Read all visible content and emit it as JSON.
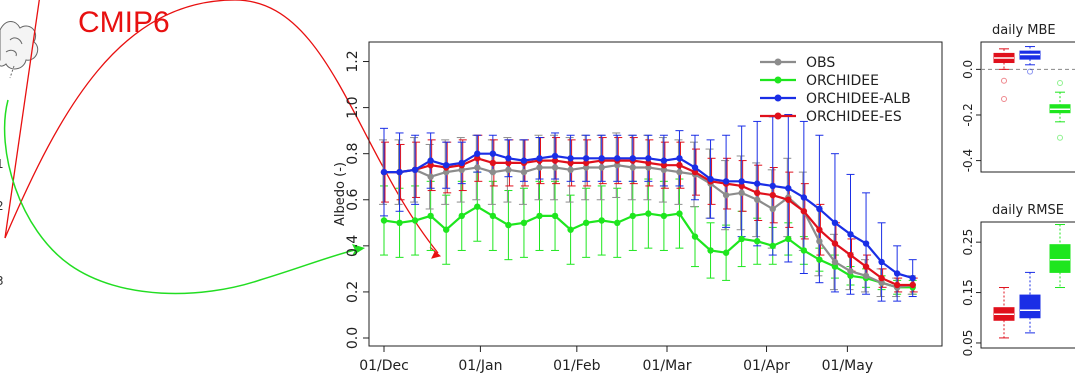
{
  "annotation": {
    "label": "CMIP6",
    "color": "#e81010"
  },
  "left_fragments": [
    "1",
    "2",
    "3"
  ],
  "colors": {
    "OBS": "#8c8c8c",
    "ORCHIDEE": "#1ee61e",
    "ORCHIDEE-ALB": "#1a2ee6",
    "ORCHIDEE-ES": "#e0101c",
    "arrow_red": "#e81010",
    "arrow_green": "#22dd22"
  },
  "chart_data": [
    {
      "type": "line",
      "ylabel": "Albedo (-)",
      "ylim": [
        0,
        1.25
      ],
      "yticks": [
        "0.0",
        "0.2",
        "0.4",
        "0.6",
        "0.8",
        "1.0",
        "1.2"
      ],
      "ytick_values": [
        0,
        0.2,
        0.4,
        0.6,
        0.8,
        1.0,
        1.2
      ],
      "xlim": [
        0,
        34
      ],
      "xticks": [
        "01/Dec",
        "01/Jan",
        "01/Feb",
        "01/Mar",
        "01/Apr",
        "01/May"
      ],
      "xtick_positions": [
        0,
        6.2,
        12.4,
        18.2,
        24.6,
        29.8
      ],
      "legend_position": "top-right",
      "series": [
        {
          "name": "OBS",
          "values": [
            0.72,
            0.72,
            0.73,
            0.7,
            0.72,
            0.73,
            0.74,
            0.72,
            0.73,
            0.72,
            0.74,
            0.74,
            0.73,
            0.74,
            0.74,
            0.75,
            0.74,
            0.74,
            0.73,
            0.72,
            0.71,
            0.67,
            0.62,
            0.63,
            0.6,
            0.56,
            0.61,
            0.55,
            0.42,
            0.33,
            0.29,
            0.27,
            0.24,
            0.22,
            0.23
          ],
          "err": [
            0.14,
            0.14,
            0.14,
            0.14,
            0.14,
            0.14,
            0.14,
            0.14,
            0.14,
            0.14,
            0.14,
            0.14,
            0.14,
            0.14,
            0.14,
            0.14,
            0.14,
            0.14,
            0.14,
            0.14,
            0.14,
            0.15,
            0.15,
            0.16,
            0.16,
            0.17,
            0.17,
            0.17,
            0.15,
            0.12,
            0.08,
            0.07,
            0.06,
            0.04,
            0.04
          ]
        },
        {
          "name": "ORCHIDEE",
          "values": [
            0.51,
            0.5,
            0.51,
            0.53,
            0.47,
            0.53,
            0.57,
            0.53,
            0.49,
            0.5,
            0.53,
            0.53,
            0.47,
            0.5,
            0.51,
            0.5,
            0.53,
            0.54,
            0.53,
            0.54,
            0.44,
            0.38,
            0.37,
            0.43,
            0.42,
            0.4,
            0.43,
            0.38,
            0.34,
            0.31,
            0.27,
            0.26,
            0.24,
            0.22,
            0.22
          ],
          "err": [
            0.15,
            0.15,
            0.15,
            0.15,
            0.15,
            0.15,
            0.15,
            0.15,
            0.15,
            0.15,
            0.15,
            0.15,
            0.15,
            0.15,
            0.15,
            0.15,
            0.15,
            0.15,
            0.15,
            0.15,
            0.13,
            0.12,
            0.12,
            0.12,
            0.1,
            0.08,
            0.07,
            0.06,
            0.05,
            0.05,
            0.04,
            0.04,
            0.03,
            0.03,
            0.03
          ]
        },
        {
          "name": "ORCHIDEE-ALB",
          "values": [
            0.72,
            0.72,
            0.73,
            0.77,
            0.75,
            0.76,
            0.8,
            0.8,
            0.78,
            0.77,
            0.78,
            0.79,
            0.78,
            0.78,
            0.78,
            0.78,
            0.78,
            0.78,
            0.77,
            0.78,
            0.74,
            0.69,
            0.68,
            0.68,
            0.67,
            0.66,
            0.65,
            0.61,
            0.56,
            0.5,
            0.45,
            0.41,
            0.33,
            0.28,
            0.26
          ],
          "err": [
            0.19,
            0.17,
            0.15,
            0.12,
            0.1,
            0.09,
            0.08,
            0.08,
            0.08,
            0.09,
            0.09,
            0.1,
            0.1,
            0.1,
            0.1,
            0.1,
            0.1,
            0.1,
            0.11,
            0.12,
            0.14,
            0.17,
            0.2,
            0.24,
            0.27,
            0.3,
            0.32,
            0.33,
            0.32,
            0.3,
            0.26,
            0.22,
            0.17,
            0.12,
            0.08
          ]
        },
        {
          "name": "ORCHIDEE-ES",
          "values": [
            0.72,
            0.72,
            0.73,
            0.75,
            0.74,
            0.75,
            0.78,
            0.76,
            0.76,
            0.76,
            0.77,
            0.77,
            0.76,
            0.76,
            0.77,
            0.77,
            0.77,
            0.76,
            0.75,
            0.75,
            0.72,
            0.68,
            0.67,
            0.66,
            0.63,
            0.62,
            0.6,
            0.55,
            0.47,
            0.41,
            0.36,
            0.31,
            0.26,
            0.23,
            0.23
          ],
          "err": [
            0.13,
            0.12,
            0.12,
            0.11,
            0.11,
            0.11,
            0.1,
            0.1,
            0.1,
            0.1,
            0.1,
            0.1,
            0.1,
            0.1,
            0.1,
            0.1,
            0.1,
            0.1,
            0.1,
            0.1,
            0.1,
            0.1,
            0.11,
            0.11,
            0.12,
            0.12,
            0.12,
            0.12,
            0.11,
            0.09,
            0.07,
            0.05,
            0.04,
            0.03,
            0.03
          ]
        }
      ]
    },
    {
      "type": "box",
      "title": "daily MBE",
      "ylim": [
        -0.45,
        0.12
      ],
      "yticks": [
        "-0.4",
        "-0.2",
        "0.0"
      ],
      "ytick_values": [
        -0.4,
        -0.2,
        0.0
      ],
      "reference_line": 0,
      "boxes": [
        {
          "name": "ORCHIDEE-ES",
          "q1": 0.03,
          "median": 0.05,
          "q3": 0.07,
          "whisker_low": 0.0,
          "whisker_high": 0.09,
          "outliers": [
            -0.05,
            -0.13
          ]
        },
        {
          "name": "ORCHIDEE-ALB",
          "q1": 0.045,
          "median": 0.065,
          "q3": 0.08,
          "whisker_low": 0.02,
          "whisker_high": 0.1,
          "outliers": [
            -0.01
          ]
        },
        {
          "name": "ORCHIDEE",
          "q1": -0.19,
          "median": -0.175,
          "q3": -0.155,
          "whisker_low": -0.23,
          "whisker_high": -0.1,
          "outliers": [
            -0.06,
            -0.3
          ]
        }
      ]
    },
    {
      "type": "box",
      "title": "daily RMSE",
      "ylim": [
        0.04,
        0.29
      ],
      "yticks": [
        "0.05",
        "0.15",
        "0.25"
      ],
      "ytick_values": [
        0.05,
        0.15,
        0.25
      ],
      "boxes": [
        {
          "name": "ORCHIDEE-ES",
          "q1": 0.095,
          "median": 0.107,
          "q3": 0.12,
          "whisker_low": 0.06,
          "whisker_high": 0.16,
          "outliers": []
        },
        {
          "name": "ORCHIDEE-ALB",
          "q1": 0.1,
          "median": 0.115,
          "q3": 0.145,
          "whisker_low": 0.07,
          "whisker_high": 0.19,
          "outliers": []
        },
        {
          "name": "ORCHIDEE",
          "q1": 0.19,
          "median": 0.215,
          "q3": 0.245,
          "whisker_low": 0.16,
          "whisker_high": 0.285,
          "outliers": []
        }
      ]
    }
  ]
}
